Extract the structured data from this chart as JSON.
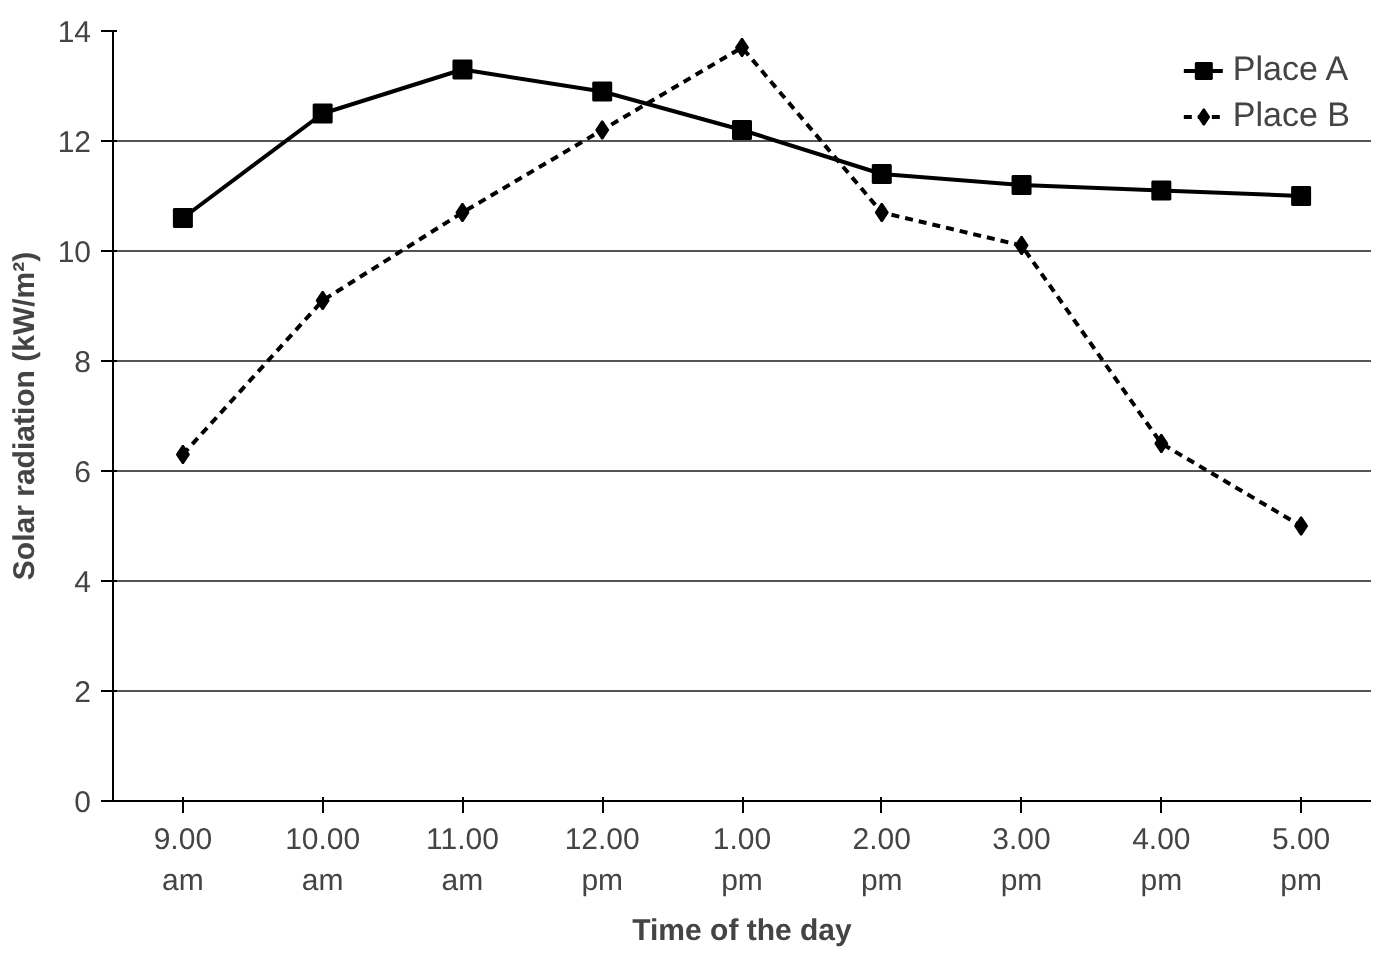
{
  "chart_data": {
    "type": "line",
    "xlabel": "Time of the day",
    "ylabel": "Solar radiation (kW/m²)",
    "categories": [
      "9.00\nam",
      "10.00\nam",
      "11.00\nam",
      "12.00\npm",
      "1.00\npm",
      "2.00\npm",
      "3.00\npm",
      "4.00\npm",
      "5.00\npm"
    ],
    "ylim": [
      0,
      14
    ],
    "yticks": [
      0,
      2,
      4,
      6,
      8,
      10,
      12,
      14
    ],
    "grid": "y",
    "legend": "top right",
    "series": [
      {
        "name": "Place A",
        "color": "#000000",
        "marker": "square",
        "line_style": "solid",
        "values": [
          10.6,
          12.5,
          13.3,
          12.9,
          12.2,
          11.4,
          11.2,
          11.1,
          11.0
        ]
      },
      {
        "name": "Place B",
        "color": "#000000",
        "marker": "diamond",
        "line_style": "dashed",
        "values": [
          6.3,
          9.1,
          10.7,
          12.2,
          13.7,
          10.7,
          10.1,
          6.5,
          5.0
        ]
      }
    ]
  }
}
